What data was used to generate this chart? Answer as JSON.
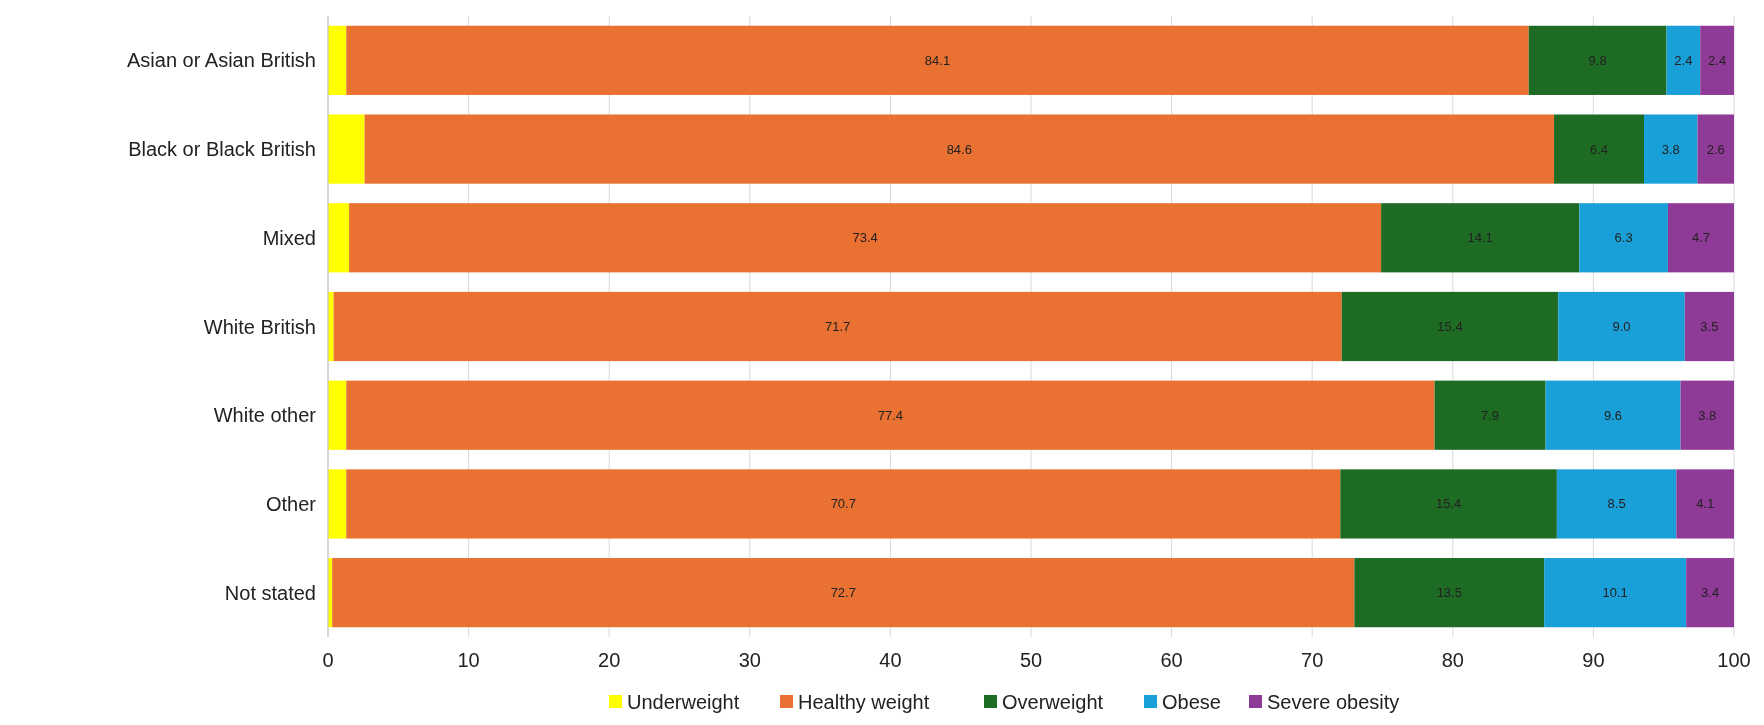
{
  "chart_data": {
    "type": "bar",
    "orientation": "horizontal",
    "stacked": true,
    "categories": [
      "Asian or Asian British",
      "Black or Black British",
      "Mixed",
      "White British",
      "White other",
      "Other",
      "Not stated"
    ],
    "series": [
      {
        "name": "Underweight",
        "color": "#ffff00",
        "values": [
          1.3,
          2.6,
          1.5,
          0.4,
          1.3,
          1.3,
          0.3
        ],
        "value_labels": [
          null,
          null,
          null,
          null,
          null,
          null,
          null
        ]
      },
      {
        "name": "Healthy weight",
        "color": "#e97132",
        "values": [
          84.1,
          84.6,
          73.4,
          71.7,
          77.4,
          70.7,
          72.7
        ],
        "value_labels": [
          "84.1",
          "84.6",
          "73.4",
          "71.7",
          "77.4",
          "70.7",
          "72.7"
        ]
      },
      {
        "name": "Overweight",
        "color": "#1e6b24",
        "values": [
          9.8,
          6.4,
          14.1,
          15.4,
          7.9,
          15.4,
          13.5
        ],
        "value_labels": [
          "9.8",
          "6.4",
          "14.1",
          "15.4",
          "7.9",
          "15.4",
          "13.5"
        ]
      },
      {
        "name": "Obese",
        "color": "#1aa0d8",
        "values": [
          2.4,
          3.8,
          6.3,
          9.0,
          9.6,
          8.5,
          10.1
        ],
        "value_labels": [
          "2.4",
          "3.8",
          "6.3",
          "9.0",
          "9.6",
          "8.5",
          "10.1"
        ]
      },
      {
        "name": "Severe obesity",
        "color": "#8e3a96",
        "values": [
          2.4,
          2.6,
          4.7,
          3.5,
          3.8,
          4.1,
          3.4
        ],
        "value_labels": [
          "2.4",
          "2.6",
          "4.7",
          "3.5",
          "3.8",
          "4.1",
          "3.4"
        ]
      }
    ],
    "xlim": [
      0,
      100
    ],
    "xticks": [
      0,
      10,
      20,
      30,
      40,
      50,
      60,
      70,
      80,
      90,
      100
    ],
    "grid": "x",
    "legend": "bottom"
  }
}
